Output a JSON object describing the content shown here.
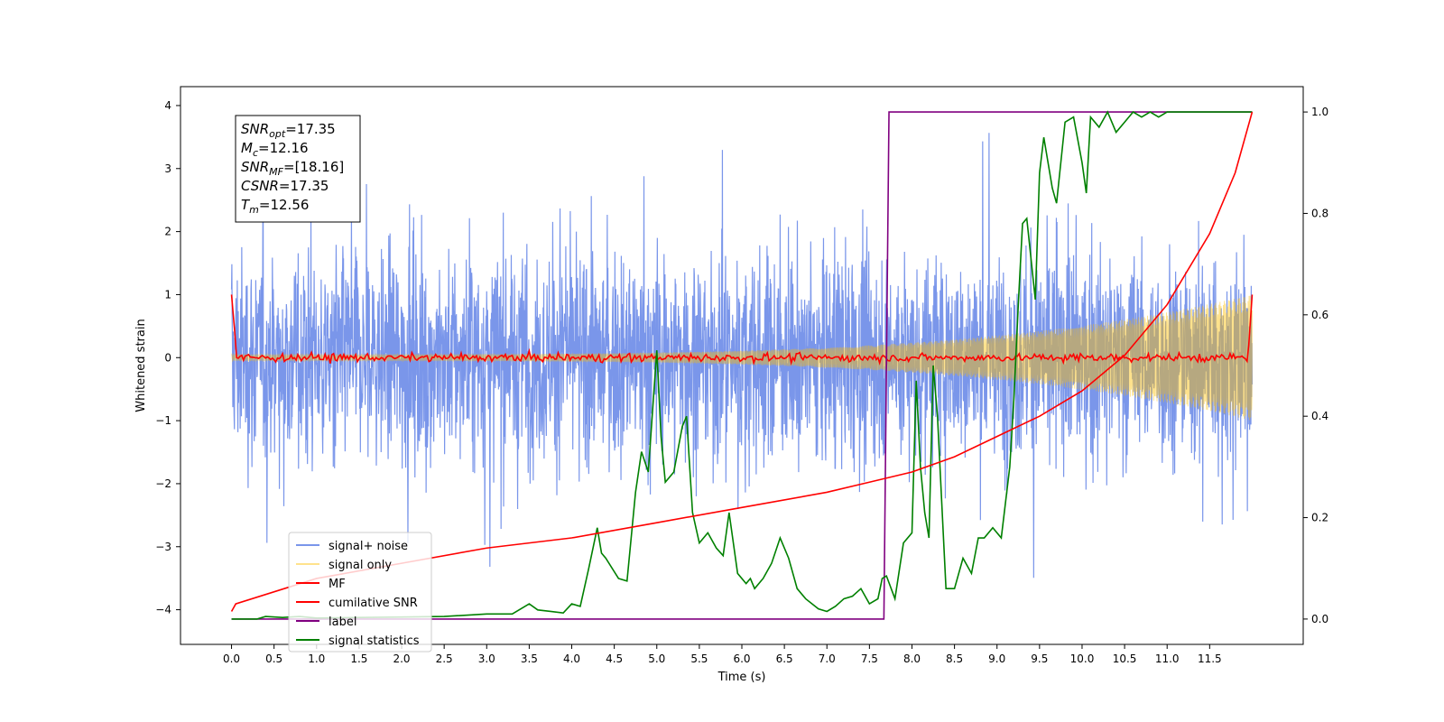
{
  "chart_data": {
    "type": "line",
    "xlabel": "Time (s)",
    "ylabel": "Whitened strain",
    "xlim": [
      -0.6,
      12.6
    ],
    "ylim": [
      -4.55,
      4.3
    ],
    "y2lim": [
      -0.05,
      1.05
    ],
    "x_ticks": [
      0.0,
      0.5,
      1.0,
      1.5,
      2.0,
      2.5,
      3.0,
      3.5,
      4.0,
      4.5,
      5.0,
      5.5,
      6.0,
      6.5,
      7.0,
      7.5,
      8.0,
      8.5,
      9.0,
      9.5,
      10.0,
      10.5,
      11.0,
      11.5
    ],
    "x_tick_labels": [
      "0.0",
      "0.5",
      "1.0",
      "1.5",
      "2.0",
      "2.5",
      "3.0",
      "3.5",
      "4.0",
      "4.5",
      "5.0",
      "5.5",
      "6.0",
      "6.5",
      "7.0",
      "7.5",
      "8.0",
      "8.5",
      "9.0",
      "9.5",
      "10.0",
      "10.5",
      "11.0",
      "11.5"
    ],
    "y_ticks": [
      -4,
      -3,
      -2,
      -1,
      0,
      1,
      2,
      3,
      4
    ],
    "y_tick_labels": [
      "−4",
      "−3",
      "−2",
      "−1",
      "0",
      "1",
      "2",
      "3",
      "4"
    ],
    "y2_ticks": [
      0.0,
      0.2,
      0.4,
      0.6,
      0.8,
      1.0
    ],
    "y2_tick_labels": [
      "0.0",
      "0.2",
      "0.4",
      "0.6",
      "0.8",
      "1.0"
    ],
    "legend_position": "lower-left",
    "annotation": {
      "lines": [
        {
          "sym": "SNR",
          "sub": "opt",
          "value": "=17.35"
        },
        {
          "sym": "M",
          "sub": "c",
          "value": "=12.16"
        },
        {
          "sym": "SNR",
          "sub": "MF",
          "value": "=[18.16]"
        },
        {
          "sym": "CSNR",
          "sub": "",
          "value": "=17.35"
        },
        {
          "sym": "T",
          "sub": "m",
          "value": "=12.56"
        }
      ]
    },
    "series": [
      {
        "name": "signal+ noise",
        "color": "#4169e1",
        "axis": "left",
        "description_values": {
          "x_start": 0.0,
          "x_end": 12.0,
          "amplitude_range": [
            -4.15,
            3.95
          ]
        }
      },
      {
        "name": "signal only",
        "color": "#ffbf00",
        "axis": "left",
        "description_values": {
          "x_start": 0.0,
          "x_end": 12.0,
          "envelope_start": 0.05,
          "envelope_end": 1.0
        }
      },
      {
        "name": "MF",
        "color": "#ff0000",
        "axis": "left",
        "description_values": {
          "x_start": 0.0,
          "x_end": 12.0,
          "start_value": 1.0,
          "baseline": 0.0,
          "end_value": 1.0
        }
      },
      {
        "name": "cumilative SNR",
        "color": "#ff0000",
        "axis": "right",
        "x": [
          0.0,
          0.05,
          1.0,
          2.0,
          3.0,
          4.0,
          5.0,
          6.0,
          7.0,
          7.5,
          8.0,
          8.5,
          9.0,
          9.5,
          10.0,
          10.5,
          11.0,
          11.5,
          11.8,
          12.0
        ],
        "values": [
          0.015,
          0.03,
          0.08,
          0.11,
          0.14,
          0.16,
          0.19,
          0.22,
          0.25,
          0.27,
          0.29,
          0.32,
          0.36,
          0.4,
          0.45,
          0.52,
          0.62,
          0.76,
          0.88,
          1.0
        ]
      },
      {
        "name": "label",
        "color": "#800080",
        "axis": "right",
        "x": [
          0.0,
          7.67,
          7.73,
          12.0
        ],
        "values": [
          0.0,
          0.0,
          1.0,
          1.0
        ]
      },
      {
        "name": "signal statistics",
        "color": "#008000",
        "axis": "right",
        "x": [
          0.0,
          0.3,
          0.4,
          0.6,
          0.8,
          1.0,
          1.5,
          2.0,
          2.5,
          3.0,
          3.3,
          3.5,
          3.6,
          3.75,
          3.9,
          4.0,
          4.1,
          4.2,
          4.3,
          4.35,
          4.4,
          4.55,
          4.65,
          4.75,
          4.82,
          4.9,
          5.0,
          5.05,
          5.1,
          5.2,
          5.3,
          5.35,
          5.42,
          5.5,
          5.6,
          5.7,
          5.78,
          5.85,
          5.95,
          6.05,
          6.1,
          6.15,
          6.25,
          6.35,
          6.45,
          6.55,
          6.65,
          6.75,
          6.9,
          7.0,
          7.1,
          7.2,
          7.3,
          7.4,
          7.5,
          7.6,
          7.65,
          7.7,
          7.8,
          7.9,
          8.0,
          8.05,
          8.1,
          8.15,
          8.2,
          8.25,
          8.3,
          8.4,
          8.5,
          8.6,
          8.7,
          8.78,
          8.85,
          8.95,
          9.05,
          9.15,
          9.2,
          9.25,
          9.3,
          9.35,
          9.45,
          9.5,
          9.55,
          9.65,
          9.7,
          9.8,
          9.9,
          10.0,
          10.05,
          10.1,
          10.2,
          10.3,
          10.4,
          10.5,
          10.6,
          10.7,
          10.8,
          10.9,
          11.0,
          11.5,
          12.0
        ],
        "values": [
          0.0,
          0.0,
          0.005,
          0.003,
          0.005,
          0.002,
          0.003,
          0.004,
          0.005,
          0.01,
          0.01,
          0.03,
          0.018,
          0.015,
          0.012,
          0.03,
          0.025,
          0.1,
          0.18,
          0.13,
          0.12,
          0.08,
          0.075,
          0.25,
          0.33,
          0.29,
          0.53,
          0.36,
          0.27,
          0.29,
          0.38,
          0.4,
          0.21,
          0.15,
          0.17,
          0.14,
          0.125,
          0.21,
          0.09,
          0.07,
          0.08,
          0.06,
          0.08,
          0.11,
          0.16,
          0.12,
          0.06,
          0.04,
          0.02,
          0.015,
          0.025,
          0.04,
          0.045,
          0.06,
          0.03,
          0.04,
          0.08,
          0.085,
          0.04,
          0.15,
          0.17,
          0.47,
          0.3,
          0.21,
          0.16,
          0.5,
          0.4,
          0.06,
          0.06,
          0.12,
          0.09,
          0.16,
          0.16,
          0.18,
          0.16,
          0.3,
          0.44,
          0.62,
          0.78,
          0.79,
          0.63,
          0.88,
          0.95,
          0.85,
          0.82,
          0.98,
          0.99,
          0.9,
          0.84,
          0.99,
          0.97,
          1.0,
          0.96,
          0.98,
          1.0,
          0.99,
          1.0,
          0.99,
          1.0,
          1.0,
          1.0
        ]
      }
    ]
  }
}
